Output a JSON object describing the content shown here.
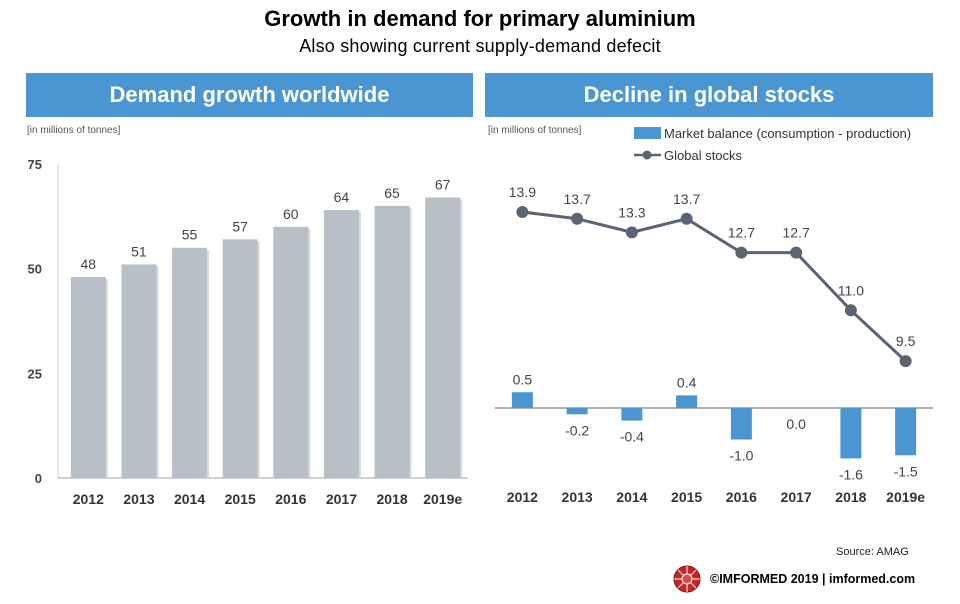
{
  "header": {
    "title": "Growth in demand for primary aluminium",
    "subtitle": "Also showing current supply-demand  defecit"
  },
  "left_panel": {
    "banner": "Demand growth worldwide",
    "unit": "[in millions of tonnes]"
  },
  "right_panel": {
    "banner": "Decline in global stocks",
    "unit": "[in millions of tonnes]"
  },
  "source": "Source: AMAG",
  "footer": {
    "text": "©IMFORMED 2019  | imformed.com"
  },
  "colors": {
    "banner": "#4a96d2",
    "bar_gray": "#b9bfc6",
    "bar_blue": "#4a96d2",
    "line": "#5a6473"
  },
  "chart_data": [
    {
      "type": "bar",
      "categories": [
        "2012",
        "2013",
        "2014",
        "2015",
        "2016",
        "2017",
        "2018",
        "2019e"
      ],
      "values": [
        48,
        51,
        55,
        57,
        60,
        64,
        65,
        67
      ],
      "title": "Demand growth worldwide",
      "ylabel": "[in millions of tonnes]",
      "ylim": [
        0,
        75
      ],
      "yticks": [
        0,
        25,
        50,
        75
      ],
      "grid": false
    },
    {
      "type": "bar",
      "categories": [
        "2012",
        "2013",
        "2014",
        "2015",
        "2016",
        "2017",
        "2018",
        "2019e"
      ],
      "title": "Decline in global stocks",
      "ylabel": "[in millions of tonnes]",
      "legend_position": "top-right",
      "series": [
        {
          "name": "Market balance (consumption - production)",
          "type": "bar",
          "values": [
            0.5,
            -0.2,
            -0.4,
            0.4,
            -1.0,
            0.0,
            -1.6,
            -1.5
          ]
        },
        {
          "name": "Global stocks",
          "type": "line",
          "values": [
            13.9,
            13.7,
            13.3,
            13.7,
            12.7,
            12.7,
            11.0,
            9.5
          ]
        }
      ]
    }
  ]
}
